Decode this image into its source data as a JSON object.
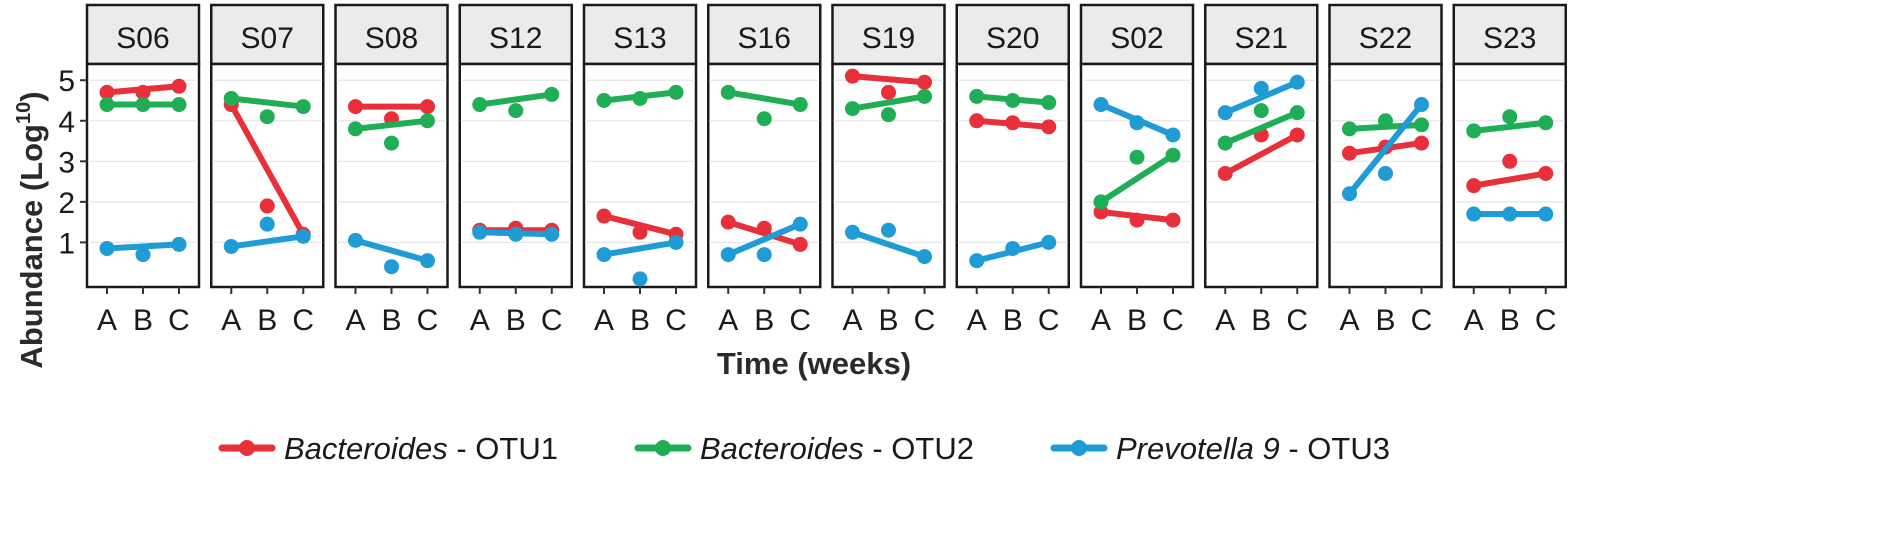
{
  "chart_data": {
    "type": "line",
    "xlabel": "Time (weeks)",
    "ylabel_main": "Abundance (Log",
    "ylabel_sup": "10",
    "ylabel_close": ")",
    "x": [
      "A",
      "B",
      "C"
    ],
    "y_ticks": [
      1,
      2,
      3,
      4,
      5
    ],
    "ylim": [
      -0.1,
      5.4
    ],
    "grid": true,
    "legend_position": "bottom",
    "series": [
      {
        "italic": "Bacteroides",
        "suffix": " - OTU1",
        "color": "#e8303a"
      },
      {
        "italic": "Bacteroides",
        "suffix": " - OTU2",
        "color": "#1fae55"
      },
      {
        "italic": "Prevotella 9",
        "suffix": " - OTU3",
        "color": "#1f9bd6"
      }
    ],
    "panels": [
      {
        "label": "S06",
        "values": [
          [
            4.7,
            4.7,
            4.85
          ],
          [
            4.4,
            4.4,
            4.4
          ],
          [
            0.85,
            0.7,
            0.95
          ]
        ]
      },
      {
        "label": "S07",
        "values": [
          [
            4.4,
            1.9,
            1.2
          ],
          [
            4.55,
            4.1,
            4.35
          ],
          [
            0.9,
            1.45,
            1.15
          ]
        ]
      },
      {
        "label": "S08",
        "values": [
          [
            4.35,
            4.05,
            4.35
          ],
          [
            3.8,
            3.45,
            4.0
          ],
          [
            1.05,
            0.4,
            0.55
          ]
        ]
      },
      {
        "label": "S12",
        "values": [
          [
            1.3,
            1.35,
            1.3
          ],
          [
            4.4,
            4.25,
            4.65
          ],
          [
            1.25,
            1.2,
            1.2
          ]
        ]
      },
      {
        "label": "S13",
        "values": [
          [
            1.65,
            1.25,
            1.2
          ],
          [
            4.5,
            4.55,
            4.7
          ],
          [
            0.7,
            0.1,
            1.0
          ]
        ]
      },
      {
        "label": "S16",
        "values": [
          [
            1.5,
            1.35,
            0.95
          ],
          [
            4.7,
            4.05,
            4.4
          ],
          [
            0.7,
            0.7,
            1.45
          ]
        ]
      },
      {
        "label": "S19",
        "values": [
          [
            5.1,
            4.7,
            4.95
          ],
          [
            4.3,
            4.15,
            4.6
          ],
          [
            1.25,
            1.3,
            0.65
          ]
        ]
      },
      {
        "label": "S20",
        "values": [
          [
            4.0,
            3.95,
            3.85
          ],
          [
            4.6,
            4.5,
            4.45
          ],
          [
            0.55,
            0.85,
            1.0
          ]
        ]
      },
      {
        "label": "S02",
        "values": [
          [
            1.75,
            1.55,
            1.55
          ],
          [
            2.0,
            3.1,
            3.15
          ],
          [
            4.4,
            3.95,
            3.65
          ]
        ]
      },
      {
        "label": "S21",
        "values": [
          [
            2.7,
            3.65,
            3.65
          ],
          [
            3.45,
            4.25,
            4.2
          ],
          [
            4.2,
            4.8,
            4.95
          ]
        ]
      },
      {
        "label": "S22",
        "values": [
          [
            3.2,
            3.35,
            3.45
          ],
          [
            3.8,
            4.0,
            3.9
          ],
          [
            2.2,
            2.7,
            4.4
          ]
        ]
      },
      {
        "label": "S23",
        "values": [
          [
            2.4,
            3.0,
            2.7
          ],
          [
            3.75,
            4.1,
            3.95
          ],
          [
            1.7,
            1.7,
            1.7
          ]
        ]
      }
    ]
  }
}
